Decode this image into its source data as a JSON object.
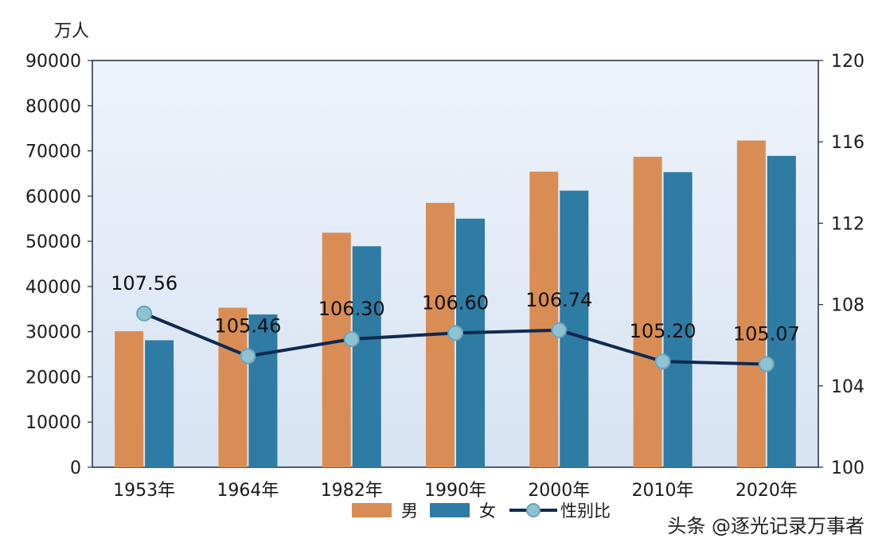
{
  "chart_data": {
    "type": "bar",
    "categories": [
      "1953年",
      "1964年",
      "1982年",
      "1990年",
      "2000年",
      "2010年",
      "2020年"
    ],
    "y_left_unit": "万人",
    "y_left_lim": [
      0,
      90000
    ],
    "y_left_ticks": [
      "0",
      "10000",
      "20000",
      "30000",
      "40000",
      "50000",
      "60000",
      "70000",
      "80000",
      "90000"
    ],
    "y_right_lim": [
      100,
      120
    ],
    "y_right_ticks": [
      "100",
      "104",
      "108",
      "112",
      "116",
      "120"
    ],
    "series": [
      {
        "name": "男",
        "type": "bar",
        "color": "#d98d54",
        "values": [
          30100,
          35300,
          51900,
          58500,
          65400,
          68700,
          72300
        ]
      },
      {
        "name": "女",
        "type": "bar",
        "color": "#2e7ba3",
        "values": [
          28100,
          33800,
          48900,
          55000,
          61200,
          65300,
          68900
        ]
      },
      {
        "name": "性别比",
        "type": "line",
        "axis": "right",
        "color": "#0e2a50",
        "marker_color": "#8fc3d3",
        "values": [
          107.56,
          105.46,
          106.3,
          106.6,
          106.74,
          105.2,
          105.07
        ],
        "labels": [
          "107.56",
          "105.46",
          "106.30",
          "106.60",
          "106.74",
          "105.20",
          "105.07"
        ]
      }
    ],
    "legend": {
      "position": "bottom",
      "items": [
        "男",
        "女",
        "性别比"
      ]
    },
    "grid": false
  },
  "watermark": "头条 @逐光记录万事者"
}
